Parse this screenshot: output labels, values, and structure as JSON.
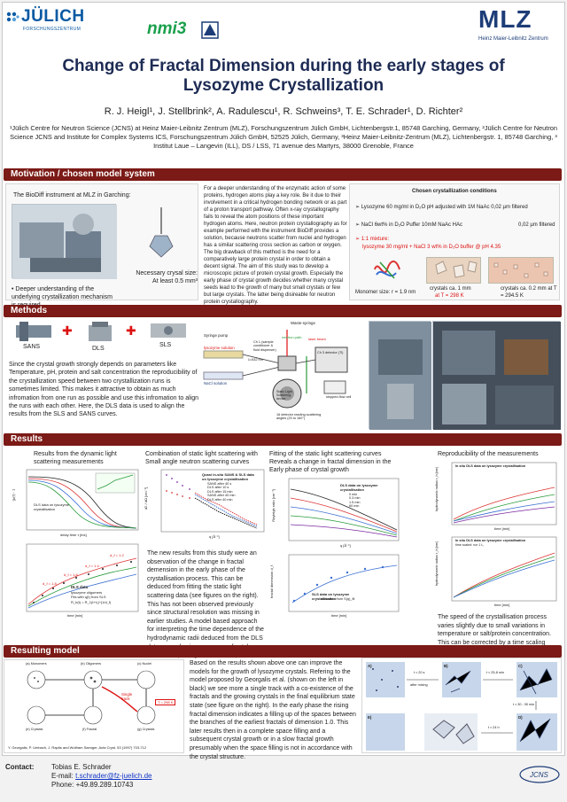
{
  "logos": {
    "juelich_name": "JÜLICH",
    "juelich_sub": "FORSCHUNGSZENTRUM",
    "nmi3": "nmi3",
    "mlz_name": "MLZ",
    "mlz_sub": "Heinz Maier-Leibnitz Zentrum"
  },
  "title_line1": "Change of Fractal Dimension during the early stages of",
  "title_line2": "Lysozyme Crystallization",
  "authors": "R. J. Heigl¹, J. Stellbrink², A. Radulescu¹, R. Schweins³, T. E. Schrader¹, D. Richter²",
  "affiliations": "¹Jülich Centre for Neutron Science (JCNS) at Heinz Maier-Leibnitz Zentrum (MLZ), Forschungszentrum Jülich GmbH, Lichtenbergstr.1, 85748 Garching, Germany, ²Jülich Centre for Neutron Science JCNS and Institute for Complex Systems ICS, Forschungszentrum Jülich GmbH, 52525 Jülich, Germany, ³Heinz Maier-Leibnitz-Zentrum (MLZ), Lichtenbergstr. 1, 85748 Garching, ³ Institut Laue – Langevin (ILL), DS / LSS, 71 avenue des Martyrs, 38000 Grenoble, France",
  "sections": {
    "motivation": "Motivation / chosen model system",
    "methods": "Methods",
    "results": "Results",
    "model": "Resulting model"
  },
  "motivation": {
    "biodiff": "The BioDiff instrument at MLZ in Garching:",
    "crystal_size_1": "Necessary crysal size:",
    "crystal_size_2": "At least 0.5 mm³",
    "deeper": "• Deeper understanding of the underlying crystallization mechanism is required",
    "paragraph": "For a deeper understanding of the enzymatic action of some proteins, hydrogen atoms play a key role. Be it due to their involvement in a critical hydrogen bonding network or as part of a proton transport pathway. Often x-ray crystallography fails to reveal the atom positions of these important hydrogen atoms. Here, neutron protein crystallography as for example performed with the instrument BioDiff provides a solution, because neutrons scatter from nuclei and hydrogen has a similar scattering cross section as carbon or oxygen. The big drawback of this method is the need for a comparatively large protein crystal in order to obtain a decent signal. The aim of this study was to develop a microscopic picture of protein crystal growth. Especially the early phase of crystal growth decides whether many crystal seeds lead to the growth of many but small crystals or few but large crystals. The latter being disireable for neutron protein crystallography.",
    "cond_title": "Chosen crystallization conditions",
    "cond1": "➢ Lysozyme 60 mg/ml in D₂O pH adjusted with 1M NaAc 0,02 µm filtered",
    "cond2": "➢ NaCl 6wt% in D₂O Puffer 10mM NaAc HAc",
    "cond2b": "0,02 µm filtered",
    "cond3": "➢ 1:1 mixture:",
    "cond3b": "lysozyme 30 mg/ml + NaCl 3 wt% in D₂O buffer @ pH 4.35",
    "monomer": "Monomer size: r = 1.9 nm",
    "crys1": "crystals ca. 1 mm",
    "crys1b": "at T = 298 K",
    "crys2": "crystals ca. 0.2 mm at T = 294.5 K"
  },
  "methods": {
    "sans": "SANS",
    "dls": "DLS",
    "sls": "SLS",
    "plus": "✚",
    "paragraph": "Since the crystal growth strongly depends on parameters like Temperature, pH, protein and salt concentration the reproducibility of the crystallization speed between two crystallization runs is sometimes limited. This makes it attractive to obtain as much infromation from one run as possible and use this infromation to align the runs with each other. Here, the DLS data is used to align the results from the SLS and SANS curves.",
    "diagram": {
      "syringe_pump": "Syringe pump",
      "lysozyme_solution": "lysozyme solution",
      "nacl_solution": "NaCl solution",
      "waste_syringe": "Waste-syringe",
      "neutron_beam": "neutron path",
      "laser": "laser beam",
      "chamber": "Static Light Scattering device",
      "angles": "16 detector reading scattering angles (20 to 160°)",
      "lambda": "λ=532 nm",
      "pump_label": "Ch 1 (sample conditioner & fluid dispenser)",
      "detector": "Ch 3 detector (Ti)",
      "stopped": "stopped-flow cell"
    }
  },
  "results": {
    "dls_title": "Results from the dynamic light scattering measurements",
    "sls_title": "Combination of static light scattering with Small angle neutron scattering curves",
    "fit_title": "Fitting of the static light scattering curves Reveals a change in fractal dimension in the Early phase of crystal growth",
    "repro_title": "Reproducibility of the measurements",
    "new_results": "The new results from this study were an observation of the change in fractal demension in the early phase of the crystallisation process. This can be deduced from fitting the static light scattering data (see figures on the right). This has not been observed previously since structural resolution was missing in earlier studies. A model based approach for interpreting the time dependence of the hydrodynamic radii deduced from the DLS data can only give an average fractal dimension (see figure on the left).",
    "speed": "The speed of the crystallisation process varies slightly due to small variations in temperature or salt/protein concentration. This can be corrected by a time scaling factor based on the DLS results.",
    "plot_labels": {
      "dls_leg": "DLS data on lysozyme crystallisation",
      "g2": "g₂(τ) - 1",
      "delay": "delay time τ [ms]",
      "rh": "hydrodynamic radius r_h [nm]",
      "time_min": "time [min]",
      "dls_data": "DLS data",
      "oligomers": "lysozyme oligomers",
      "fits": "Fits with q(t) from SLS",
      "df1": "d_f = 1.2",
      "df2": "d_f = 1.4",
      "df3": "d_f = 1.6",
      "df4": "d_f = 1.8",
      "rh_eq": "R_h(t) = R_1(t+t₀)^(1/d_f)",
      "sls_leg": "Quasi in-situ SANS & SLS data on lysozyme crystallisation",
      "sls_s1": "SANS after 40 s",
      "sls_s2": "DLS after 10 s",
      "sls_s3": "DLS after 15 min",
      "sls_s4": "SANS after 40 min",
      "sls_s5": "DLS after 40 min",
      "dsdo": "dΣ / dΩ [cm⁻¹]",
      "q": "q [Å⁻¹]",
      "fit_leg": "DLS data on lysozyme crystallisation",
      "fit_s1": "0 min",
      "fit_s2": "0.3 min",
      "fit_s3": "1.5 min",
      "fit_s4": "60 min",
      "rayleigh": "Rayleigh ratio [cm⁻¹]",
      "fd": "fractal dimension d_f",
      "fit2_leg": "SLS data on lysozyme crystallisation",
      "fit2_s": "evaluated from S(q)_fit",
      "rep_leg1": "In situ DLS data on lysozyme crystallisation",
      "rep_leg2": "In situ DLS data on lysozyme crystallisation",
      "rep_sub": "time scaled: run 1 t₀",
      "time_min2": "time [min]"
    }
  },
  "model": {
    "paragraph": "Based on the results shown above one can improve the models for the growth of lysozyme crystals. Refering to the model proposed by Georgalis et al. (shown on the left in black) we see more a single track with a co-existence of the fractals and the growing crystals in the final equilibrium state state (see figure on the right). In the early phase the rising fractal dimension indicates a filling up of the spaces between the branches of the earliest fractals of dimension 1.0. This later results then in a complete space filling and a subsequent crystal growth or in a slow fractal growth presumably when the space filling is not in accordance with the crystal structure.",
    "ref": "Y. Georgalis, P. Umbach, J. Raptis and Wolfram Saenger, Acta Cryst. 53 (1997) 703-712",
    "single_track": "Single track",
    "temp_box": "T = 298 K",
    "labels": {
      "a": "(a) Monomers",
      "b": "(b) Oligomers",
      "c": "(c) Nuclei",
      "d": "(d) Fractal",
      "e": "(e) Crystals",
      "f": "(f) Fractal",
      "g": "(g) Crystals"
    },
    "right": {
      "t1": "t ≈ 20 s",
      "t1b": "after mixing",
      "t2": "t ≈ 25-8 min",
      "t3": "t ≈ 30 - 90 min",
      "t4": "t ≈ 24 h",
      "A": "A)",
      "B": "B)",
      "C": "C)",
      "D": "D)",
      "E": "E)"
    }
  },
  "contact": {
    "label": "Contact:",
    "name": "Tobias E. Schrader",
    "email_label": "E-mail: ",
    "email": "t.schrader@fz-juelich.de",
    "phone": "Phone: +49.89.289.10743"
  },
  "colors": {
    "section_bg": "#7b1a16",
    "title": "#1d2b54",
    "accent_red": "#d11111",
    "link": "#1236c7"
  }
}
